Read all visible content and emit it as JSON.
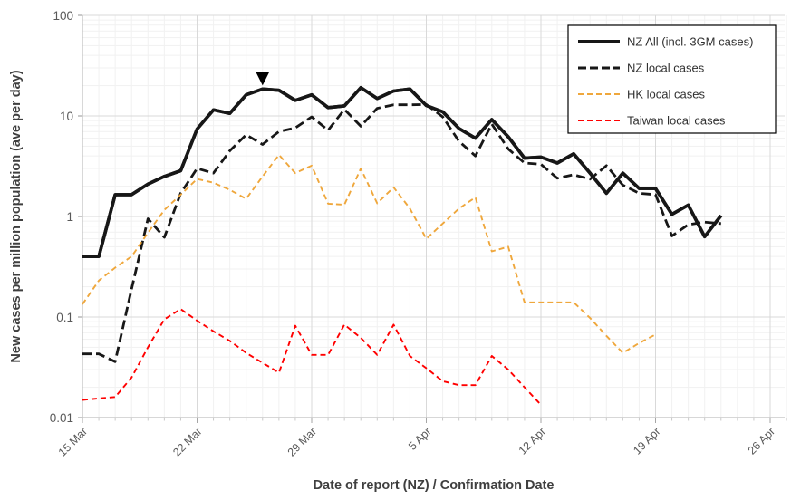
{
  "chart_data": {
    "type": "line",
    "title": "",
    "xlabel": "Date of report (NZ) / Confirmation Date",
    "ylabel": "New cases per million population (ave per day)",
    "y_scale": "log",
    "ylim": [
      0.01,
      100
    ],
    "y_ticks": [
      {
        "label": "100",
        "value": 100
      },
      {
        "label": "10",
        "value": 10
      },
      {
        "label": "1",
        "value": 1
      },
      {
        "label": "0.1",
        "value": 0.1
      },
      {
        "label": "0.01",
        "value": 0.01
      }
    ],
    "x_ticks": [
      {
        "label": "15 Mar",
        "day": 0
      },
      {
        "label": "22 Mar",
        "day": 7
      },
      {
        "label": "29 Mar",
        "day": 14
      },
      {
        "label": "5 Apr",
        "day": 21
      },
      {
        "label": "12 Apr",
        "day": 28
      },
      {
        "label": "19 Apr",
        "day": 35
      },
      {
        "label": "26 Apr",
        "day": 42
      }
    ],
    "x_total_days": 42,
    "grid": {
      "minor_daily_vertical": true,
      "minor_log_horizontal": true
    },
    "dates": [
      "15 Mar",
      "16 Mar",
      "17 Mar",
      "18 Mar",
      "19 Mar",
      "20 Mar",
      "21 Mar",
      "22 Mar",
      "23 Mar",
      "24 Mar",
      "25 Mar",
      "26 Mar",
      "27 Mar",
      "28 Mar",
      "29 Mar",
      "30 Mar",
      "31 Mar",
      "1 Apr",
      "2 Apr",
      "3 Apr",
      "4 Apr",
      "5 Apr",
      "6 Apr",
      "7 Apr",
      "8 Apr",
      "9 Apr",
      "10 Apr",
      "11 Apr",
      "12 Apr",
      "13 Apr",
      "14 Apr",
      "15 Apr",
      "16 Apr",
      "17 Apr",
      "18 Apr",
      "19 Apr",
      "20 Apr",
      "21 Apr",
      "22 Apr",
      "23 Apr"
    ],
    "series": [
      {
        "name": "NZ All (incl. 3GM cases)",
        "color": "#171717",
        "line_style": "solid",
        "values": [
          0.4,
          0.4,
          1.65,
          1.65,
          2.1,
          2.5,
          2.85,
          7.4,
          11.5,
          10.6,
          16.2,
          18.5,
          18,
          14.3,
          16.2,
          12.1,
          12.6,
          19.1,
          14.9,
          17.7,
          18.5,
          12.7,
          11,
          7.5,
          6,
          9.2,
          6.2,
          3.8,
          3.9,
          3.4,
          4.2,
          2.7,
          1.7,
          2.7,
          1.9,
          1.9,
          1.05,
          1.3,
          0.63,
          1.02
        ]
      },
      {
        "name": "NZ local cases",
        "color": "#171717",
        "line_style": "dashed",
        "values": [
          0.043,
          0.043,
          0.036,
          0.19,
          0.95,
          0.62,
          1.7,
          3,
          2.7,
          4.5,
          6.5,
          5.2,
          7,
          7.6,
          9.8,
          7.2,
          11.6,
          7.9,
          11.9,
          12.9,
          12.9,
          13,
          9.8,
          5.6,
          4,
          8.3,
          4.7,
          3.4,
          3.3,
          2.4,
          2.6,
          2.35,
          3.2,
          2.05,
          1.7,
          1.65,
          0.64,
          0.83,
          0.88,
          0.85
        ]
      },
      {
        "name": "HK local cases",
        "color": "#EFA73C",
        "line_style": "dashed",
        "values": [
          0.134,
          0.23,
          0.31,
          0.4,
          0.69,
          1.16,
          1.65,
          2.36,
          2.17,
          1.84,
          1.5,
          2.5,
          4.1,
          2.7,
          3.2,
          1.34,
          1.31,
          3,
          1.35,
          1.95,
          1.2,
          0.6,
          0.85,
          1.2,
          1.55,
          0.45,
          0.5,
          0.14,
          0.14,
          0.14,
          0.14,
          0.098,
          0.065,
          0.044,
          0.055,
          0.067
        ]
      },
      {
        "name": "Taiwan local cases",
        "color": "#FF0000",
        "line_style": "dashed",
        "values": [
          0.015,
          0.0155,
          0.016,
          0.025,
          0.05,
          0.095,
          0.12,
          0.092,
          0.072,
          0.058,
          0.044,
          0.035,
          0.028,
          0.082,
          0.042,
          0.042,
          0.084,
          0.062,
          0.042,
          0.084,
          0.041,
          0.031,
          0.023,
          0.021,
          0.021,
          0.041,
          0.03,
          0.02,
          0.0134
        ]
      }
    ],
    "annotation": {
      "symbol": "filled-down-triangle",
      "date": "26 Mar",
      "color": "#000000"
    },
    "legend": {
      "position": "top-right",
      "border_color": "#000000",
      "background": "#ffffff"
    },
    "colors": {
      "major_grid": "#D9D9D9",
      "minor_grid": "#F1F1F1",
      "axis_line": "#BFBFBF",
      "tick_label": "#595959",
      "axis_title": "#3F3F3F",
      "legend_text": "#303030"
    }
  }
}
